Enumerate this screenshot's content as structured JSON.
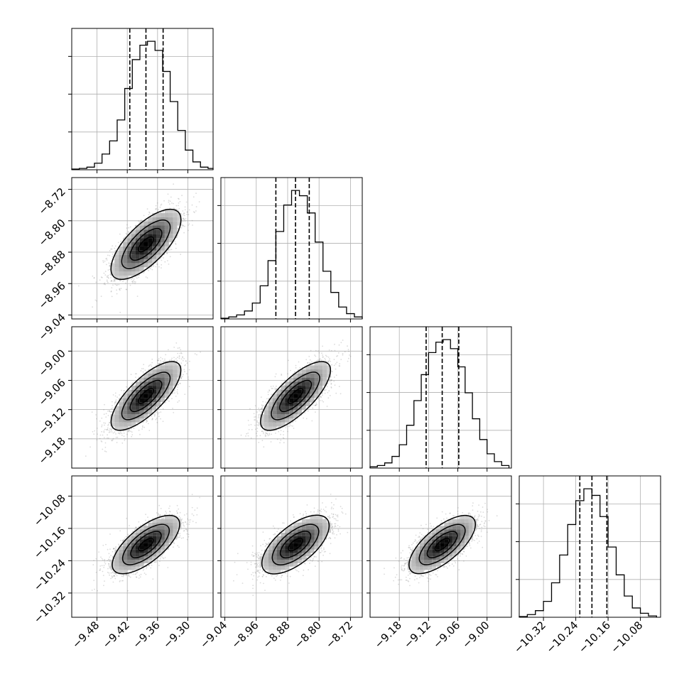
{
  "chart_data": {
    "type": "corner",
    "title": "",
    "grid": true,
    "colors": {
      "line": "#000000",
      "grid": "#b0b0b0",
      "points": "#7f7f7f",
      "background": "#ffffff"
    },
    "parameters": [
      {
        "index": 0,
        "range": [
          -9.53,
          -9.25
        ],
        "ticks": [
          -9.48,
          -9.42,
          -9.36,
          -9.3
        ],
        "tick_labels": [
          "−9.48",
          "−9.42",
          "−9.36",
          "−9.30"
        ],
        "quantiles": [
          -9.415,
          -9.383,
          -9.349
        ],
        "histogram_peak": 98
      },
      {
        "index": 1,
        "range": [
          -9.05,
          -8.69
        ],
        "ticks": [
          -9.04,
          -8.96,
          -8.88,
          -8.8,
          -8.72
        ],
        "tick_labels": [
          "−9.04",
          "−8.96",
          "−8.88",
          "−8.80",
          "−8.72"
        ],
        "quantiles": [
          -8.91,
          -8.86,
          -8.825
        ],
        "histogram_peak": 97
      },
      {
        "index": 2,
        "range": [
          -9.24,
          -8.95
        ],
        "ticks": [
          -9.18,
          -9.12,
          -9.06,
          -9.0
        ],
        "tick_labels": [
          "−9.18",
          "−9.12",
          "−9.06",
          "−9.00"
        ],
        "quantiles": [
          -9.125,
          -9.092,
          -9.058
        ],
        "histogram_peak": 99
      },
      {
        "index": 3,
        "range": [
          -10.38,
          -10.03
        ],
        "ticks": [
          -10.32,
          -10.24,
          -10.16,
          -10.08
        ],
        "tick_labels": [
          "−10.32",
          "−10.24",
          "−10.16",
          "−10.08"
        ],
        "quantiles": [
          -10.23,
          -10.2,
          -10.163
        ],
        "histogram_peak": 97
      }
    ],
    "histograms": [
      {
        "param": 0,
        "bins": [
          -9.53,
          -9.515,
          -9.5,
          -9.485,
          -9.47,
          -9.455,
          -9.44,
          -9.425,
          -9.41,
          -9.395,
          -9.38,
          -9.365,
          -9.35,
          -9.335,
          -9.32,
          -9.305,
          -9.29,
          -9.275,
          -9.26,
          -9.25
        ],
        "counts": [
          0.5,
          1,
          2,
          5,
          12,
          22,
          38,
          62,
          84,
          95,
          98,
          91,
          75,
          52,
          30,
          15,
          6,
          2,
          1
        ]
      },
      {
        "param": 1,
        "bins": [
          -9.05,
          -9.03,
          -9.01,
          -8.99,
          -8.97,
          -8.95,
          -8.93,
          -8.91,
          -8.89,
          -8.87,
          -8.85,
          -8.83,
          -8.81,
          -8.79,
          -8.77,
          -8.75,
          -8.73,
          -8.71,
          -8.69
        ],
        "counts": [
          0.5,
          1.5,
          3,
          6,
          12,
          25,
          44,
          66,
          86,
          97,
          93,
          80,
          58,
          36,
          20,
          9,
          4,
          1.5
        ]
      },
      {
        "param": 2,
        "bins": [
          -9.24,
          -9.225,
          -9.21,
          -9.195,
          -9.18,
          -9.165,
          -9.15,
          -9.135,
          -9.12,
          -9.105,
          -9.09,
          -9.075,
          -9.06,
          -9.045,
          -9.03,
          -9.015,
          -9.0,
          -8.985,
          -8.97,
          -8.955
        ],
        "counts": [
          1,
          2,
          4,
          9,
          18,
          33,
          52,
          72,
          89,
          97,
          99,
          92,
          78,
          58,
          38,
          22,
          11,
          5,
          2
        ]
      },
      {
        "param": 3,
        "bins": [
          -10.38,
          -10.36,
          -10.34,
          -10.32,
          -10.3,
          -10.28,
          -10.26,
          -10.24,
          -10.22,
          -10.2,
          -10.18,
          -10.16,
          -10.14,
          -10.12,
          -10.1,
          -10.08,
          -10.06,
          -10.04
        ],
        "counts": [
          0.5,
          2,
          5,
          12,
          26,
          47,
          70,
          88,
          97,
          92,
          76,
          53,
          32,
          16,
          7,
          3,
          1
        ]
      }
    ],
    "pairs": [
      {
        "x_param": 0,
        "y_param": 1,
        "correlation": 0.7,
        "points": 2500
      },
      {
        "x_param": 0,
        "y_param": 2,
        "correlation": 0.75,
        "points": 2500
      },
      {
        "x_param": 1,
        "y_param": 2,
        "correlation": 0.75,
        "points": 2500
      },
      {
        "x_param": 0,
        "y_param": 3,
        "correlation": 0.7,
        "points": 2500
      },
      {
        "x_param": 1,
        "y_param": 3,
        "correlation": 0.65,
        "points": 2500
      },
      {
        "x_param": 2,
        "y_param": 3,
        "correlation": 0.7,
        "points": 2500
      }
    ]
  }
}
